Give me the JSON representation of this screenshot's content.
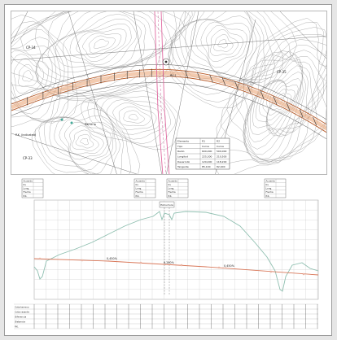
{
  "plan": {
    "labels": {
      "north_a": "CP-34",
      "north_b": "CP-35",
      "south_left": "CP-33",
      "west_note": "P.K. (indicated)",
      "mid_note": "Ramo la",
      "center_tag": "RV-1"
    },
    "data_table": {
      "rows": [
        {
          "key": "Elemento",
          "a": "R1",
          "b": "R2"
        },
        {
          "key": "Tipo",
          "a": "Curva",
          "b": "Curva"
        },
        {
          "key": "Radio",
          "a": "600,000",
          "b": "500,000"
        },
        {
          "key": "Longitud",
          "a": "225,300",
          "b": "210,500"
        },
        {
          "key": "Desarrollo",
          "a": "120,400",
          "b": "118,200"
        },
        {
          "key": "Tangente",
          "a": "85,100",
          "b": "82,400"
        }
      ]
    }
  },
  "profile": {
    "note_boxes": [
      {
        "rows": [
          "Acuerdo",
          "Kv",
          "Long.",
          "Flecha",
          "P.K."
        ]
      },
      {
        "rows": [
          "Acuerdo",
          "Kv",
          "Long.",
          "Flecha",
          "P.K."
        ]
      },
      {
        "rows": [
          "Acuerdo",
          "Kv",
          "Long.",
          "Flecha",
          "P.K."
        ]
      },
      {
        "rows": [
          "Acuerdo",
          "Kv",
          "Long.",
          "Flecha",
          "P.K."
        ]
      }
    ],
    "left_labels": [
      "Cota terreno",
      "Cota rasante",
      "Diferencia",
      "Distancia",
      "P.K."
    ],
    "grade_labels": [
      "0,450%",
      "0,280%",
      "0,450%"
    ],
    "structure_label": "Estructura"
  },
  "colors": {
    "road_orange": "#e9a070",
    "crossing_pink": "#e06aa0",
    "contour": "#8f8f8f",
    "terrain_line": "#8fbfb0",
    "grade_line": "#d9785a",
    "grid": "#d2d2d2"
  }
}
